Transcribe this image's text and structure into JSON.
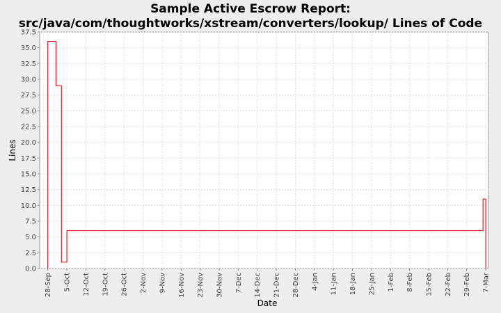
{
  "chart_data": {
    "type": "step",
    "title": [
      "Sample Active Escrow Report:",
      "src/java/com/thoughtworks/xstream/converters/lookup/ Lines of Code"
    ],
    "x_label": "Date",
    "y_label": "Lines",
    "x": [
      "28-Sep",
      "28-Sep",
      "1-Oct",
      "3-Oct",
      "5-Oct",
      "6-Mar",
      "7-Mar"
    ],
    "series": [
      {
        "name": "Lines",
        "color": "#cc0000",
        "values": [
          0,
          36,
          29,
          1,
          6,
          11,
          0
        ]
      }
    ],
    "xlim": [
      "25-Sep",
      "8-Mar"
    ],
    "xticks": [
      "28-Sep",
      "5-Oct",
      "12-Oct",
      "19-Oct",
      "26-Oct",
      "2-Nov",
      "9-Nov",
      "16-Nov",
      "23-Nov",
      "30-Nov",
      "7-Dec",
      "14-Dec",
      "21-Dec",
      "28-Dec",
      "4-Jan",
      "11-Jan",
      "18-Jan",
      "25-Jan",
      "1-Feb",
      "8-Feb",
      "15-Feb",
      "22-Feb",
      "29-Feb",
      "7-Mar"
    ],
    "ylim": [
      0,
      37.5
    ],
    "yticks": [
      {
        "value": 0,
        "label": "0.0"
      },
      2.5,
      {
        "value": 5,
        "label": "5.0"
      },
      7.5,
      {
        "value": 10,
        "label": "10.0"
      },
      12.5,
      {
        "value": 15,
        "label": "15.0"
      },
      17.5,
      {
        "value": 20,
        "label": "20.0"
      },
      22.5,
      {
        "value": 25,
        "label": "25.0"
      },
      27.5,
      {
        "value": 30,
        "label": "30.0"
      },
      32.5,
      {
        "value": 35,
        "label": "35.0"
      },
      37.5
    ],
    "grid": true
  }
}
